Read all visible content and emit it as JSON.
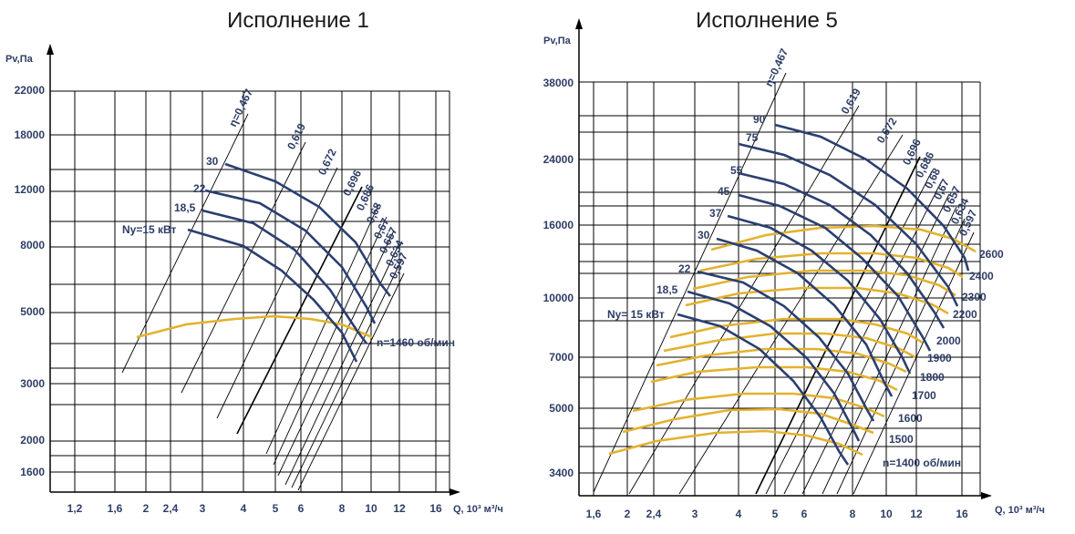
{
  "chart_data": [
    {
      "type": "line",
      "title": "Исполнение 1",
      "ylabel": "Pv,Па",
      "xlabel": "Q, 10³ м³/ч",
      "x_ticks": [
        "1,2",
        "1,6",
        "2",
        "2,4",
        "3",
        "4",
        "5",
        "6",
        "8",
        "10",
        "12",
        "16"
      ],
      "y_ticks": [
        "22000",
        "18000",
        "12000",
        "8000",
        "5000",
        "3000",
        "2000",
        "1600"
      ],
      "efficiency_lines": [
        "η=0,467",
        "0,619",
        "0,672",
        "0,696",
        "0,686",
        "0,68",
        "0,67",
        "0,657",
        "0,634",
        "0,597"
      ],
      "power_curves": [
        {
          "name": "30"
        },
        {
          "name": "22"
        },
        {
          "name": "18,5"
        },
        {
          "name": "Ny=15 кВт"
        }
      ],
      "speed_curves": [
        {
          "name": "n=1460 об/мин"
        }
      ]
    },
    {
      "type": "line",
      "title": "Исполнение 5",
      "ylabel": "Pv,Па",
      "xlabel": "Q, 10³ м³/ч",
      "x_ticks": [
        "1,6",
        "2",
        "2,4",
        "3",
        "4",
        "5",
        "6",
        "8",
        "10",
        "12",
        "16"
      ],
      "y_ticks": [
        "38000",
        "24000",
        "16000",
        "10000",
        "7000",
        "5000",
        "3400"
      ],
      "efficiency_lines": [
        "η=0,467",
        "0,619",
        "0,672",
        "0,696",
        "0,686",
        "0,68",
        "0,67",
        "0,657",
        "0,634",
        "0,597"
      ],
      "power_curves": [
        {
          "name": "90"
        },
        {
          "name": "75"
        },
        {
          "name": "55"
        },
        {
          "name": "45"
        },
        {
          "name": "37"
        },
        {
          "name": "30"
        },
        {
          "name": "22"
        },
        {
          "name": "18,5"
        },
        {
          "name": "Ny= 15 кВт"
        }
      ],
      "speed_curves": [
        {
          "name": "2600"
        },
        {
          "name": "2400"
        },
        {
          "name": "2300"
        },
        {
          "name": "2200"
        },
        {
          "name": "2000"
        },
        {
          "name": "1900"
        },
        {
          "name": "1800"
        },
        {
          "name": "1700"
        },
        {
          "name": "1600"
        },
        {
          "name": "1500"
        },
        {
          "name": "n=1400 об/мин"
        }
      ]
    }
  ]
}
